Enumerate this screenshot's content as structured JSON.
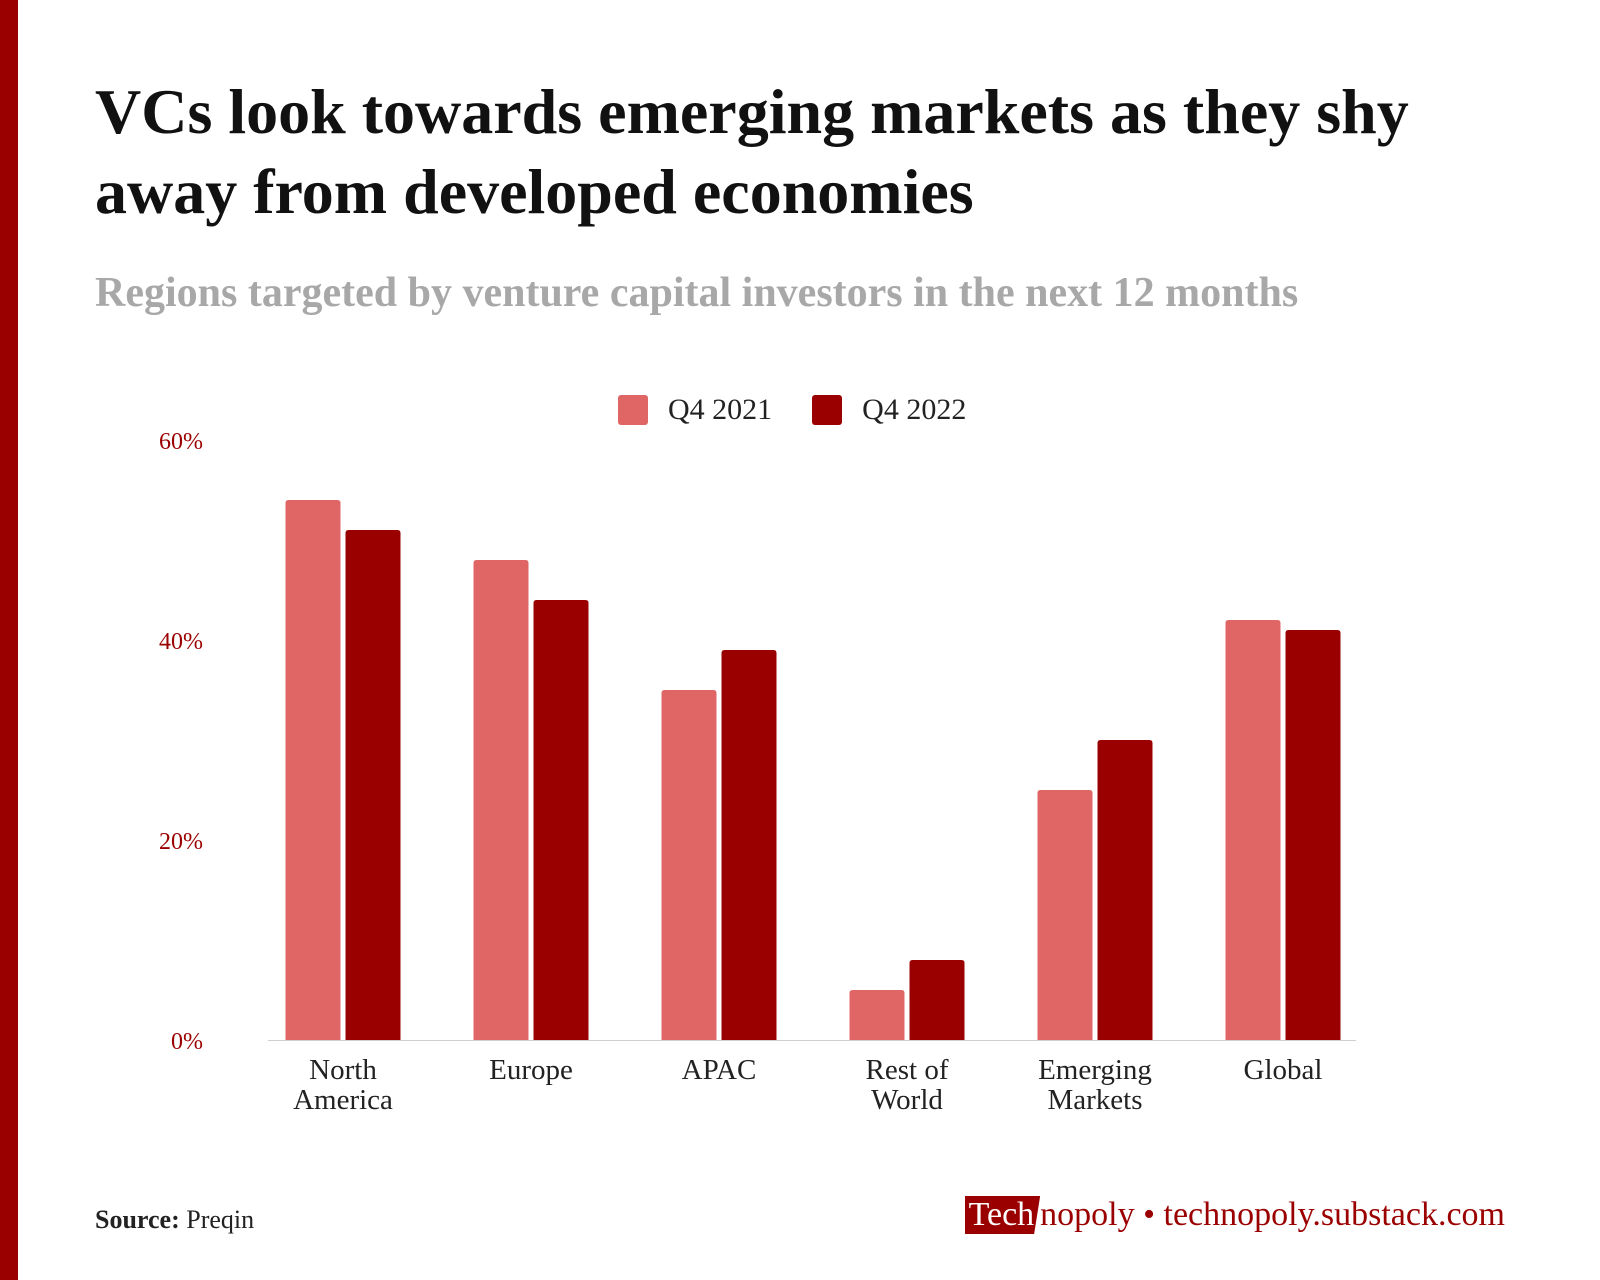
{
  "title": "VCs look towards emerging markets as they shy away from developed economies",
  "subtitle": "Regions targeted by venture capital investors in the next 12 months",
  "colors": {
    "q4_2021": "#e06666",
    "q4_2022": "#9b0000",
    "axis": "#9b0000",
    "accent": "#9b0000"
  },
  "chart_data": {
    "type": "bar",
    "categories": [
      [
        "North",
        "America"
      ],
      [
        "Europe"
      ],
      [
        "APAC"
      ],
      [
        "Rest of",
        "World"
      ],
      [
        "Emerging",
        "Markets"
      ],
      [
        "Global"
      ]
    ],
    "series": [
      {
        "name": "Q4 2021",
        "values": [
          54,
          48,
          35,
          5,
          25,
          42
        ]
      },
      {
        "name": "Q4 2022",
        "values": [
          51,
          44,
          39,
          8,
          30,
          41
        ]
      }
    ],
    "ylim": [
      0,
      60
    ],
    "yticks": [
      0,
      20,
      40,
      60
    ],
    "ytick_labels": [
      "0%",
      "20%",
      "40%",
      "60%"
    ],
    "legend_position": "top-center",
    "grid": false
  },
  "footer": {
    "source_label": "Source:",
    "source_value": "Preqin",
    "brand_highlight": "Tech",
    "brand_rest": "nopoly • technopoly.substack.com"
  }
}
